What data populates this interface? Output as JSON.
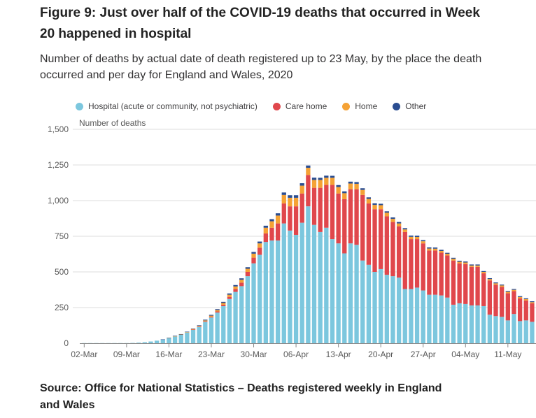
{
  "title": "Figure 9: Just over half of the COVID-19 deaths that occurred in Week 20 happened in hospital",
  "subtitle": "Number of deaths by actual date of death registered up to 23 May, by the place the death occurred and per day for England and Wales, 2020",
  "source": "Source: Office for National Statistics – Deaths registered weekly in England and Wales",
  "colors": {
    "hospital": "#7cc7de",
    "care_home": "#e0474c",
    "home": "#f5a235",
    "other": "#2a4d91",
    "grid": "#dcdcdc",
    "axis": "#8a8a8a",
    "text": "#5a5a5a"
  },
  "chart_data": {
    "type": "bar",
    "stacked": true,
    "ylabel": "Number of deaths",
    "ylim": [
      0,
      1500
    ],
    "yticks": [
      0,
      250,
      500,
      750,
      "1,000",
      "1,250",
      "1,500"
    ],
    "ytick_values": [
      0,
      250,
      500,
      750,
      1000,
      1250,
      1500
    ],
    "xtick_labels": [
      "02-Mar",
      "09-Mar",
      "16-Mar",
      "23-Mar",
      "30-Mar",
      "06-Apr",
      "13-Apr",
      "20-Apr",
      "27-Apr",
      "04-May",
      "11-May"
    ],
    "xtick_positions": [
      0,
      7,
      14,
      21,
      28,
      35,
      42,
      49,
      56,
      63,
      70
    ],
    "legend_position": "top",
    "grid": true,
    "series": [
      {
        "name": "Hospital (acute or community, not psychiatric)",
        "color": "#7cc7de",
        "values": [
          1,
          1,
          1,
          1,
          1,
          1,
          1,
          1,
          2,
          4,
          7,
          12,
          18,
          26,
          36,
          48,
          60,
          75,
          95,
          115,
          150,
          180,
          215,
          260,
          310,
          360,
          400,
          470,
          560,
          620,
          710,
          720,
          720,
          840,
          790,
          760,
          845,
          960,
          830,
          780,
          810,
          730,
          700,
          630,
          700,
          690,
          580,
          550,
          500,
          520,
          480,
          470,
          460,
          380,
          380,
          390,
          370,
          340,
          340,
          335,
          320,
          270,
          280,
          275,
          265,
          265,
          260,
          200,
          190,
          185,
          160,
          205,
          155,
          160,
          150
        ],
        "labels": [
          "02-Mar",
          "03-Mar",
          "04-Mar",
          "05-Mar",
          "06-Mar",
          "07-Mar",
          "08-Mar",
          "09-Mar",
          "10-Mar",
          "11-Mar",
          "12-Mar",
          "13-Mar",
          "14-Mar",
          "15-Mar",
          "16-Mar",
          "17-Mar",
          "18-Mar",
          "19-Mar",
          "20-Mar",
          "21-Mar",
          "22-Mar",
          "23-Mar",
          "24-Mar",
          "25-Mar",
          "26-Mar",
          "27-Mar",
          "28-Mar",
          "29-Mar",
          "30-Mar",
          "31-Mar",
          "01-Apr",
          "02-Apr",
          "03-Apr",
          "04-Apr",
          "05-Apr",
          "06-Apr",
          "07-Apr",
          "08-Apr",
          "09-Apr",
          "10-Apr",
          "11-Apr",
          "12-Apr",
          "13-Apr",
          "14-Apr",
          "15-Apr",
          "16-Apr",
          "17-Apr",
          "18-Apr",
          "19-Apr",
          "20-Apr",
          "21-Apr",
          "22-Apr",
          "23-Apr",
          "24-Apr",
          "25-Apr",
          "26-Apr",
          "27-Apr",
          "28-Apr",
          "29-Apr",
          "30-Apr",
          "01-May",
          "02-May",
          "03-May",
          "04-May",
          "05-May",
          "06-May",
          "07-May",
          "08-May",
          "09-May",
          "10-May",
          "11-May",
          "12-May",
          "13-May",
          "14-May",
          "15-May"
        ]
      },
      {
        "name": "Care home",
        "color": "#e0474c",
        "values": [
          0,
          0,
          0,
          0,
          0,
          0,
          0,
          0,
          0,
          0,
          0,
          0,
          0,
          0,
          0,
          0,
          0,
          0,
          1,
          2,
          4,
          5,
          8,
          10,
          15,
          20,
          25,
          30,
          40,
          50,
          60,
          90,
          120,
          140,
          170,
          200,
          205,
          220,
          260,
          310,
          300,
          380,
          350,
          380,
          380,
          390,
          460,
          430,
          440,
          420,
          410,
          380,
          360,
          400,
          350,
          340,
          330,
          310,
          310,
          300,
          295,
          310,
          280,
          280,
          270,
          270,
          230,
          240,
          220,
          210,
          190,
          160,
          160,
          140,
          130
        ],
        "labels": [
          "02-Mar",
          "03-Mar",
          "04-Mar",
          "05-Mar",
          "06-Mar",
          "07-Mar",
          "08-Mar",
          "09-Mar",
          "10-Mar",
          "11-Mar",
          "12-Mar",
          "13-Mar",
          "14-Mar",
          "15-Mar",
          "16-Mar",
          "17-Mar",
          "18-Mar",
          "19-Mar",
          "20-Mar",
          "21-Mar",
          "22-Mar",
          "23-Mar",
          "24-Mar",
          "25-Mar",
          "26-Mar",
          "27-Mar",
          "28-Mar",
          "29-Mar",
          "30-Mar",
          "31-Mar",
          "01-Apr",
          "02-Apr",
          "03-Apr",
          "04-Apr",
          "05-Apr",
          "06-Apr",
          "07-Apr",
          "08-Apr",
          "09-Apr",
          "10-Apr",
          "11-Apr",
          "12-Apr",
          "13-Apr",
          "14-Apr",
          "15-Apr",
          "16-Apr",
          "17-Apr",
          "18-Apr",
          "19-Apr",
          "20-Apr",
          "21-Apr",
          "22-Apr",
          "23-Apr",
          "24-Apr",
          "25-Apr",
          "26-Apr",
          "27-Apr",
          "28-Apr",
          "29-Apr",
          "30-Apr",
          "01-May",
          "02-May",
          "03-May",
          "04-May",
          "05-May",
          "06-May",
          "07-May",
          "08-May",
          "09-May",
          "10-May",
          "11-May",
          "12-May",
          "13-May",
          "14-May",
          "15-May"
        ]
      },
      {
        "name": "Home",
        "color": "#f5a235",
        "values": [
          0,
          0,
          0,
          0,
          0,
          0,
          0,
          0,
          0,
          0,
          0,
          0,
          0,
          0,
          1,
          2,
          2,
          3,
          4,
          5,
          6,
          8,
          9,
          12,
          15,
          18,
          20,
          22,
          28,
          30,
          40,
          45,
          55,
          60,
          60,
          60,
          55,
          50,
          55,
          55,
          50,
          50,
          45,
          42,
          40,
          38,
          35,
          32,
          30,
          28,
          25,
          22,
          20,
          18,
          16,
          15,
          15,
          14,
          13,
          12,
          12,
          12,
          11,
          11,
          10,
          10,
          10,
          10,
          10,
          10,
          10,
          9,
          9,
          9,
          8
        ],
        "labels": [
          "02-Mar",
          "03-Mar",
          "04-Mar",
          "05-Mar",
          "06-Mar",
          "07-Mar",
          "08-Mar",
          "09-Mar",
          "10-Mar",
          "11-Mar",
          "12-Mar",
          "13-Mar",
          "14-Mar",
          "15-Mar",
          "16-Mar",
          "17-Mar",
          "18-Mar",
          "19-Mar",
          "20-Mar",
          "21-Mar",
          "22-Mar",
          "23-Mar",
          "24-Mar",
          "25-Mar",
          "26-Mar",
          "27-Mar",
          "28-Mar",
          "29-Mar",
          "30-Mar",
          "31-Mar",
          "01-Apr",
          "02-Apr",
          "03-Apr",
          "04-Apr",
          "05-Apr",
          "06-Apr",
          "07-Apr",
          "08-Apr",
          "09-Apr",
          "10-Apr",
          "11-Apr",
          "12-Apr",
          "13-Apr",
          "14-Apr",
          "15-Apr",
          "16-Apr",
          "17-Apr",
          "18-Apr",
          "19-Apr",
          "20-Apr",
          "21-Apr",
          "22-Apr",
          "23-Apr",
          "24-Apr",
          "25-Apr",
          "26-Apr",
          "27-Apr",
          "28-Apr",
          "29-Apr",
          "30-Apr",
          "01-May",
          "02-May",
          "03-May",
          "04-May",
          "05-May",
          "06-May",
          "07-May",
          "08-May",
          "09-May",
          "10-May",
          "11-May",
          "12-May",
          "13-May",
          "14-May",
          "15-May"
        ]
      },
      {
        "name": "Other",
        "color": "#2a4d91",
        "values": [
          0,
          0,
          0,
          0,
          0,
          0,
          0,
          0,
          0,
          0,
          0,
          0,
          0,
          1,
          1,
          2,
          2,
          3,
          3,
          4,
          5,
          6,
          7,
          8,
          9,
          10,
          10,
          11,
          12,
          13,
          14,
          15,
          16,
          17,
          18,
          18,
          17,
          16,
          16,
          15,
          15,
          14,
          14,
          13,
          13,
          12,
          12,
          11,
          11,
          10,
          10,
          10,
          10,
          9,
          9,
          9,
          8,
          8,
          8,
          8,
          7,
          7,
          7,
          7,
          7,
          7,
          6,
          6,
          6,
          6,
          6,
          6,
          6,
          6,
          6
        ],
        "labels": [
          "02-Mar",
          "03-Mar",
          "04-Mar",
          "05-Mar",
          "06-Mar",
          "07-Mar",
          "08-Mar",
          "09-Mar",
          "10-Mar",
          "11-Mar",
          "12-Mar",
          "13-Mar",
          "14-Mar",
          "15-Mar",
          "16-Mar",
          "17-Mar",
          "18-Mar",
          "19-Mar",
          "20-Mar",
          "21-Mar",
          "22-Mar",
          "23-Mar",
          "24-Mar",
          "25-Mar",
          "26-Mar",
          "27-Mar",
          "28-Mar",
          "29-Mar",
          "30-Mar",
          "31-Mar",
          "01-Apr",
          "02-Apr",
          "03-Apr",
          "04-Apr",
          "05-Apr",
          "06-Apr",
          "07-Apr",
          "08-Apr",
          "09-Apr",
          "10-Apr",
          "11-Apr",
          "12-Apr",
          "13-Apr",
          "14-Apr",
          "15-Apr",
          "16-Apr",
          "17-Apr",
          "18-Apr",
          "19-Apr",
          "20-Apr",
          "21-Apr",
          "22-Apr",
          "23-Apr",
          "24-Apr",
          "25-Apr",
          "26-Apr",
          "27-Apr",
          "28-Apr",
          "29-Apr",
          "30-Apr",
          "01-May",
          "02-May",
          "03-May",
          "04-May",
          "05-May",
          "06-May",
          "07-May",
          "08-May",
          "09-May",
          "10-May",
          "11-May",
          "12-May",
          "13-May",
          "14-May",
          "15-May"
        ]
      }
    ]
  }
}
